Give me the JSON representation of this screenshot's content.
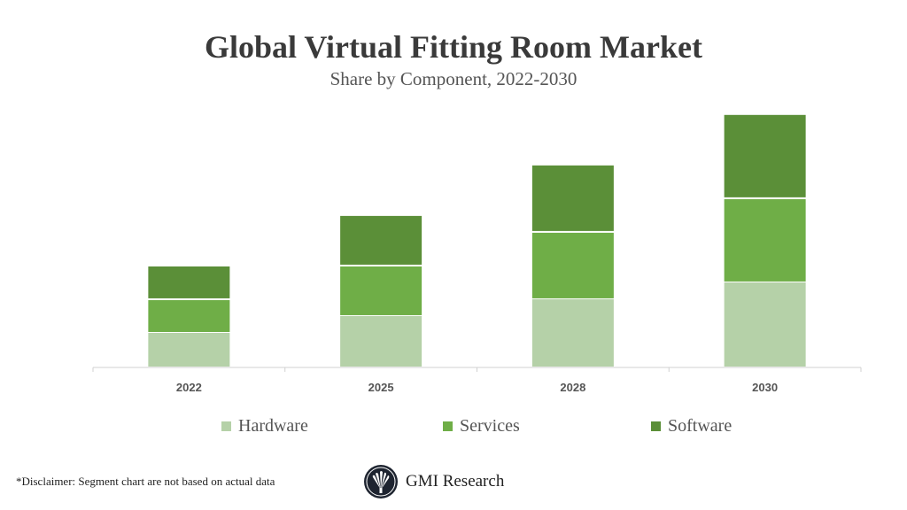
{
  "chart_data": {
    "type": "bar",
    "stacked": true,
    "title": "Global Virtual Fitting Room Market",
    "subtitle": "Share by Component, 2022-2030",
    "xlabel": "",
    "ylabel": "",
    "categories": [
      "2022",
      "2025",
      "2028",
      "2030"
    ],
    "series": [
      {
        "name": "Hardware",
        "color": "#b5d1a8",
        "values": [
          1,
          1.5,
          2,
          2.5
        ]
      },
      {
        "name": "Services",
        "color": "#6fae47",
        "values": [
          1,
          1.5,
          2,
          2.5
        ]
      },
      {
        "name": "Software",
        "color": "#5b8f38",
        "values": [
          1,
          1.5,
          2,
          2.5
        ]
      }
    ],
    "ylim": [
      0,
      7.6
    ],
    "y_axis_visible": false,
    "grid": false,
    "legend_position": "bottom"
  },
  "footer": {
    "disclaimer": "*Disclaimer:  Segment chart are not based on actual data",
    "brand": "GMI Research"
  }
}
